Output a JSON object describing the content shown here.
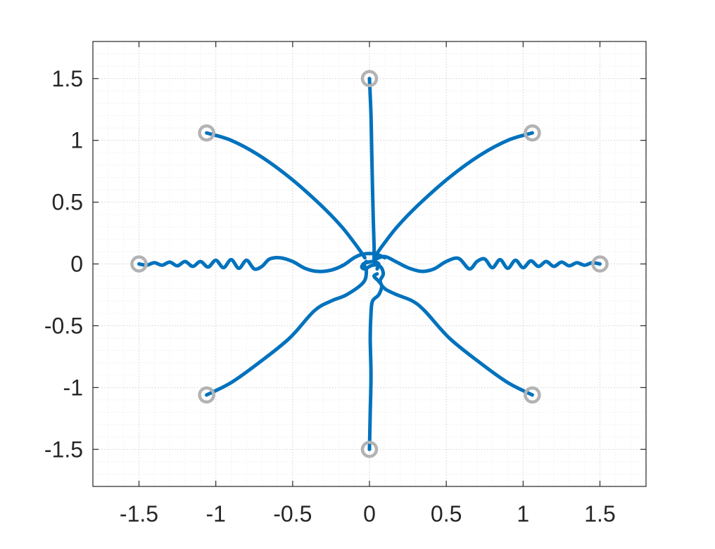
{
  "chart_data": {
    "type": "line",
    "title": "",
    "xlabel": "",
    "ylabel": "",
    "xlim": [
      -1.8,
      1.8
    ],
    "ylim": [
      -1.8,
      1.8
    ],
    "xticks": [
      -1.5,
      -1,
      -0.5,
      0,
      0.5,
      1,
      1.5
    ],
    "yticks": [
      -1.5,
      -1,
      -0.5,
      0,
      0.5,
      1,
      1.5
    ],
    "xtick_labels": [
      "-1.5",
      "-1",
      "-0.5",
      "0",
      "0.5",
      "1",
      "1.5"
    ],
    "ytick_labels": [
      "-1.5",
      "-1",
      "-0.5",
      "0",
      "0.5",
      "1",
      "1.5"
    ],
    "grid": true,
    "minor_grid": true,
    "colors": {
      "line": "#0072BD",
      "marker": "#b3b3b3"
    },
    "start_points": [
      {
        "x": 0,
        "y": 1.5
      },
      {
        "x": 1.06,
        "y": 1.06
      },
      {
        "x": 1.5,
        "y": 0
      },
      {
        "x": 1.06,
        "y": -1.06
      },
      {
        "x": 0,
        "y": -1.5
      },
      {
        "x": -1.06,
        "y": -1.06
      },
      {
        "x": -1.5,
        "y": 0
      },
      {
        "x": -1.06,
        "y": 1.06
      }
    ],
    "series": [
      {
        "points": [
          [
            0,
            1.5
          ],
          [
            0.01,
            1.2
          ],
          [
            0.015,
            0.9
          ],
          [
            0.02,
            0.6
          ],
          [
            0.025,
            0.35
          ],
          [
            0.03,
            0.15
          ],
          [
            0.03,
            0.04
          ]
        ]
      },
      {
        "points": [
          [
            1.06,
            1.06
          ],
          [
            0.9,
            1.0
          ],
          [
            0.72,
            0.88
          ],
          [
            0.52,
            0.7
          ],
          [
            0.32,
            0.48
          ],
          [
            0.18,
            0.3
          ],
          [
            0.08,
            0.14
          ],
          [
            0.03,
            0.05
          ]
        ]
      },
      {
        "points": [
          [
            -1.06,
            1.06
          ],
          [
            -0.9,
            1.0
          ],
          [
            -0.72,
            0.88
          ],
          [
            -0.52,
            0.7
          ],
          [
            -0.32,
            0.48
          ],
          [
            -0.18,
            0.3
          ],
          [
            -0.08,
            0.14
          ],
          [
            -0.03,
            0.05
          ]
        ]
      },
      {
        "points": [
          [
            1.5,
            0
          ],
          [
            1.45,
            0.01
          ],
          [
            1.4,
            -0.01
          ],
          [
            1.35,
            0.01
          ],
          [
            1.3,
            -0.015
          ],
          [
            1.25,
            0.015
          ],
          [
            1.2,
            -0.02
          ],
          [
            1.15,
            0.02
          ],
          [
            1.1,
            -0.02
          ],
          [
            1.05,
            0.025
          ],
          [
            1.0,
            -0.03
          ],
          [
            0.95,
            0.03
          ],
          [
            0.9,
            -0.035
          ],
          [
            0.85,
            0.035
          ],
          [
            0.8,
            -0.03
          ],
          [
            0.75,
            0.04
          ],
          [
            0.7,
            0.02
          ],
          [
            0.65,
            -0.04
          ],
          [
            0.58,
            0.045
          ],
          [
            0.5,
            0.02
          ],
          [
            0.42,
            -0.04
          ],
          [
            0.34,
            -0.06
          ],
          [
            0.25,
            -0.03
          ],
          [
            0.17,
            0.02
          ],
          [
            0.1,
            0.06
          ],
          [
            0.04,
            0.04
          ]
        ]
      },
      {
        "points": [
          [
            -1.5,
            0
          ],
          [
            -1.45,
            -0.01
          ],
          [
            -1.4,
            0.01
          ],
          [
            -1.35,
            -0.01
          ],
          [
            -1.3,
            0.015
          ],
          [
            -1.25,
            -0.015
          ],
          [
            -1.2,
            0.02
          ],
          [
            -1.15,
            -0.02
          ],
          [
            -1.1,
            0.02
          ],
          [
            -1.05,
            -0.025
          ],
          [
            -1.0,
            0.03
          ],
          [
            -0.95,
            -0.03
          ],
          [
            -0.9,
            0.035
          ],
          [
            -0.85,
            -0.035
          ],
          [
            -0.8,
            0.03
          ],
          [
            -0.75,
            -0.04
          ],
          [
            -0.7,
            -0.02
          ],
          [
            -0.65,
            0.04
          ],
          [
            -0.58,
            0.05
          ],
          [
            -0.5,
            0.02
          ],
          [
            -0.42,
            -0.035
          ],
          [
            -0.34,
            -0.06
          ],
          [
            -0.25,
            -0.05
          ],
          [
            -0.17,
            -0.01
          ],
          [
            -0.1,
            0.05
          ],
          [
            -0.04,
            0.08
          ],
          [
            0.04,
            0.08
          ],
          [
            0.1,
            0.05
          ]
        ]
      },
      {
        "points": [
          [
            1.06,
            -1.06
          ],
          [
            0.9,
            -0.96
          ],
          [
            0.72,
            -0.8
          ],
          [
            0.52,
            -0.6
          ],
          [
            0.36,
            -0.38
          ],
          [
            0.28,
            -0.3
          ],
          [
            0.18,
            -0.25
          ],
          [
            0.1,
            -0.2
          ],
          [
            0.07,
            -0.14
          ],
          [
            0.09,
            -0.08
          ],
          [
            0.07,
            -0.02
          ],
          [
            0.02,
            -0.01
          ],
          [
            -0.03,
            -0.04
          ],
          [
            -0.05,
            -0.02
          ],
          [
            -0.02,
            0.02
          ]
        ]
      },
      {
        "points": [
          [
            -1.06,
            -1.06
          ],
          [
            -0.9,
            -0.96
          ],
          [
            -0.72,
            -0.8
          ],
          [
            -0.52,
            -0.6
          ],
          [
            -0.36,
            -0.38
          ],
          [
            -0.25,
            -0.3
          ],
          [
            -0.15,
            -0.25
          ],
          [
            -0.04,
            -0.15
          ],
          [
            -0.02,
            -0.06
          ],
          [
            -0.03,
            -0.02
          ],
          [
            -0.04,
            0.0
          ],
          [
            0.02,
            0.02
          ],
          [
            0.06,
            0.0
          ],
          [
            0.05,
            -0.04
          ]
        ]
      },
      {
        "points": [
          [
            0,
            -1.5
          ],
          [
            0.005,
            -1.2
          ],
          [
            0.01,
            -0.9
          ],
          [
            0.005,
            -0.6
          ],
          [
            0.01,
            -0.4
          ],
          [
            0.02,
            -0.3
          ],
          [
            0.06,
            -0.25
          ],
          [
            0.08,
            -0.18
          ],
          [
            0.06,
            -0.14
          ],
          [
            0.03,
            -0.1
          ],
          [
            0.05,
            -0.08
          ]
        ]
      }
    ]
  }
}
